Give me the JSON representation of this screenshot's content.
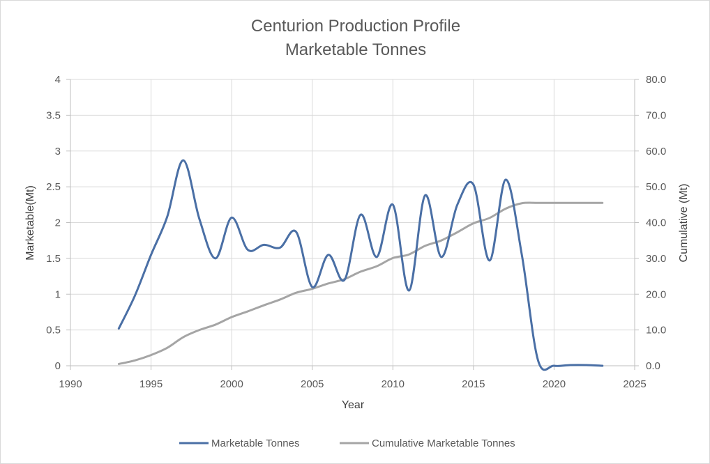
{
  "chart_data": {
    "type": "line",
    "title": [
      "Centurion Production Profile",
      "Marketable Tonnes"
    ],
    "xlabel": "Year",
    "ylabel": "Marketable(Mt)",
    "y2label": "Cumulative (Mt)",
    "xlim": [
      1990,
      2025
    ],
    "ylim": [
      0,
      4
    ],
    "y2lim": [
      0,
      80
    ],
    "xticks": [
      "1990",
      "1995",
      "2000",
      "2005",
      "2010",
      "2015",
      "2020",
      "2025"
    ],
    "yticks": [
      "0",
      "0.5",
      "1",
      "1.5",
      "2",
      "2.5",
      "3",
      "3.5",
      "4"
    ],
    "y2ticks": [
      "0.0",
      "10.0",
      "20.0",
      "30.0",
      "40.0",
      "50.0",
      "60.0",
      "70.0",
      "80.0"
    ],
    "grid": true,
    "legend_position": "bottom",
    "x": [
      1993,
      1994,
      1995,
      1996,
      1997,
      1998,
      1999,
      2000,
      2001,
      2002,
      2003,
      2004,
      2005,
      2006,
      2007,
      2008,
      2009,
      2010,
      2011,
      2012,
      2013,
      2014,
      2015,
      2016,
      2017,
      2018,
      2019,
      2020,
      2021,
      2022,
      2023
    ],
    "series": [
      {
        "name": "Marketable Tonnes",
        "axis": "left",
        "color": "#4a6fa5",
        "values": [
          0.52,
          0.98,
          1.55,
          2.08,
          2.87,
          2.05,
          1.5,
          2.07,
          1.62,
          1.69,
          1.65,
          1.87,
          1.1,
          1.55,
          1.2,
          2.11,
          1.52,
          2.25,
          1.05,
          2.38,
          1.52,
          2.25,
          2.53,
          1.47,
          2.6,
          1.55,
          0.08,
          0.0,
          0.01,
          0.01,
          0.0
        ]
      },
      {
        "name": "Cumulative Marketable Tonnes",
        "axis": "right",
        "color": "#a5a5a5",
        "values": [
          0.5,
          1.5,
          3.0,
          5.0,
          8.0,
          10.0,
          11.5,
          13.6,
          15.2,
          16.9,
          18.5,
          20.4,
          21.5,
          23.0,
          24.2,
          26.3,
          27.8,
          30.1,
          31.1,
          33.5,
          35.0,
          37.3,
          39.8,
          41.3,
          43.9,
          45.4,
          45.5,
          45.5,
          45.5,
          45.5,
          45.5
        ]
      }
    ]
  }
}
